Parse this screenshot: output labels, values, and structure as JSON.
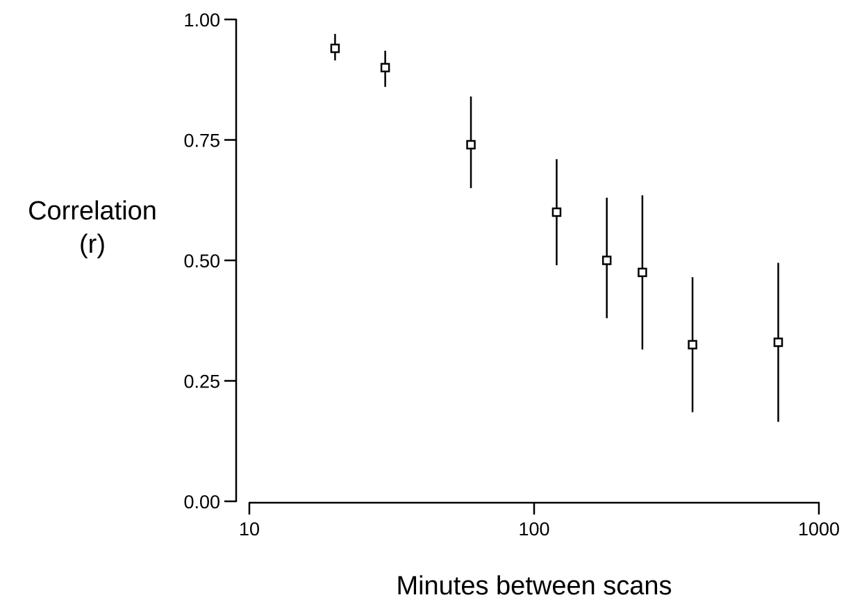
{
  "chart_data": {
    "type": "scatter",
    "title": "",
    "xlabel": "Minutes between scans",
    "ylabel_lines": [
      "Correlation",
      "(r)"
    ],
    "x_scale": "log",
    "xlim": [
      10,
      1000
    ],
    "ylim": [
      0,
      1
    ],
    "x_ticks": [
      {
        "value": 10,
        "label": "10"
      },
      {
        "value": 100,
        "label": "100"
      },
      {
        "value": 1000,
        "label": "1000"
      }
    ],
    "y_ticks": [
      {
        "value": 0,
        "label": "0.00"
      },
      {
        "value": 0.25,
        "label": "0.25"
      },
      {
        "value": 0.5,
        "label": "0.50"
      },
      {
        "value": 0.75,
        "label": "0.75"
      },
      {
        "value": 1,
        "label": "1.00"
      }
    ],
    "grid": false,
    "marker": "open-square",
    "color": "#000000",
    "points": [
      {
        "x": 20,
        "y": 0.94,
        "ylow": 0.915,
        "yhigh": 0.97
      },
      {
        "x": 30,
        "y": 0.9,
        "ylow": 0.86,
        "yhigh": 0.935
      },
      {
        "x": 60,
        "y": 0.74,
        "ylow": 0.65,
        "yhigh": 0.84
      },
      {
        "x": 120,
        "y": 0.6,
        "ylow": 0.49,
        "yhigh": 0.71
      },
      {
        "x": 180,
        "y": 0.5,
        "ylow": 0.38,
        "yhigh": 0.63
      },
      {
        "x": 240,
        "y": 0.475,
        "ylow": 0.315,
        "yhigh": 0.635
      },
      {
        "x": 360,
        "y": 0.325,
        "ylow": 0.185,
        "yhigh": 0.465
      },
      {
        "x": 720,
        "y": 0.33,
        "ylow": 0.165,
        "yhigh": 0.495
      }
    ]
  }
}
